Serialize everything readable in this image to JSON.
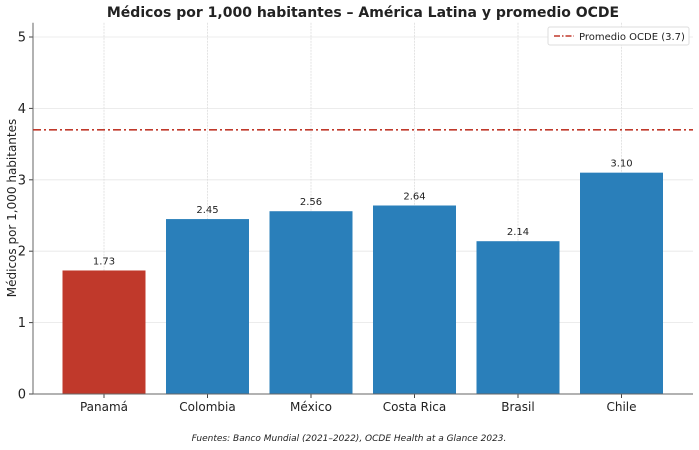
{
  "chart_data": {
    "type": "bar",
    "title": "Médicos por 1,000 habitantes – América Latina y promedio OCDE",
    "xlabel": "",
    "ylabel": "Médicos por 1,000 habitantes",
    "categories": [
      "Panamá",
      "Colombia",
      "México",
      "Costa Rica",
      "Brasil",
      "Chile"
    ],
    "values": [
      1.73,
      2.45,
      2.56,
      2.64,
      2.14,
      3.1
    ],
    "value_labels": [
      "1.73",
      "2.45",
      "2.56",
      "2.64",
      "2.14",
      "3.10"
    ],
    "bar_colors": [
      "#c0392b",
      "#2a7fba",
      "#2a7fba",
      "#2a7fba",
      "#2a7fba",
      "#2a7fba"
    ],
    "ylim": [
      0,
      5.2
    ],
    "yticks": [
      0,
      1,
      2,
      3,
      4,
      5
    ],
    "grid": true,
    "reference_line": {
      "label": "Promedio OCDE (3.7)",
      "value": 3.7,
      "color": "#c0392b",
      "style": "dash-dot"
    },
    "legend_placement": "top-right",
    "footnote": "Fuentes: Banco Mundial (2021–2022), OCDE Health at a Glance 2023."
  }
}
